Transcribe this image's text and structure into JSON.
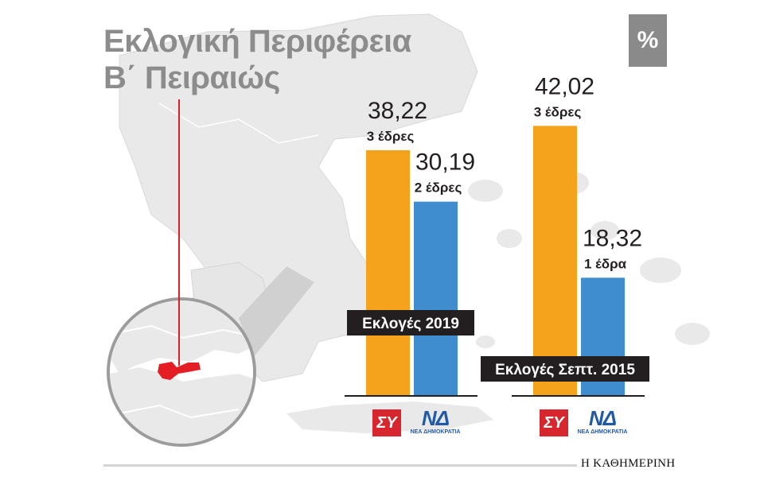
{
  "title": {
    "line1": "Εκλογική Περιφέρεια",
    "line2": "Β΄ Πειραιώς"
  },
  "badge": "%",
  "publisher": "Η ΚΑΘΗΜΕΡΙΝΗ",
  "colors": {
    "syriza": "#f5a31d",
    "nd": "#3f8ccf",
    "label_bg": "#231f20",
    "highlight": "#e31e24",
    "map_gray": "#e9e9e9"
  },
  "parties": [
    {
      "logo_text": "ΣΥ",
      "logo_icon": "syriza-logo"
    },
    {
      "logo_text": "ΝΔ",
      "logo_sub": "ΝΕΑ ΔΗΜΟΚΡΑΤΙΑ",
      "logo_icon": "nd-logo"
    }
  ],
  "chart_data": {
    "type": "bar",
    "categories": [
      "Εκλογές 2019",
      "Εκλογές Σεπτ. 2015"
    ],
    "series": [
      {
        "party": "syriza",
        "values": [
          38.22,
          42.02
        ],
        "labels": [
          "38,22",
          "42,02"
        ],
        "seats": [
          "3 έδρες",
          "3 έδρες"
        ]
      },
      {
        "party": "nd",
        "values": [
          30.19,
          18.32
        ],
        "labels": [
          "30,19",
          "18,32"
        ],
        "seats": [
          "2 έδρες",
          "1 έδρα"
        ]
      }
    ],
    "ylim": [
      0,
      45
    ],
    "legend": "none",
    "grid": false
  }
}
